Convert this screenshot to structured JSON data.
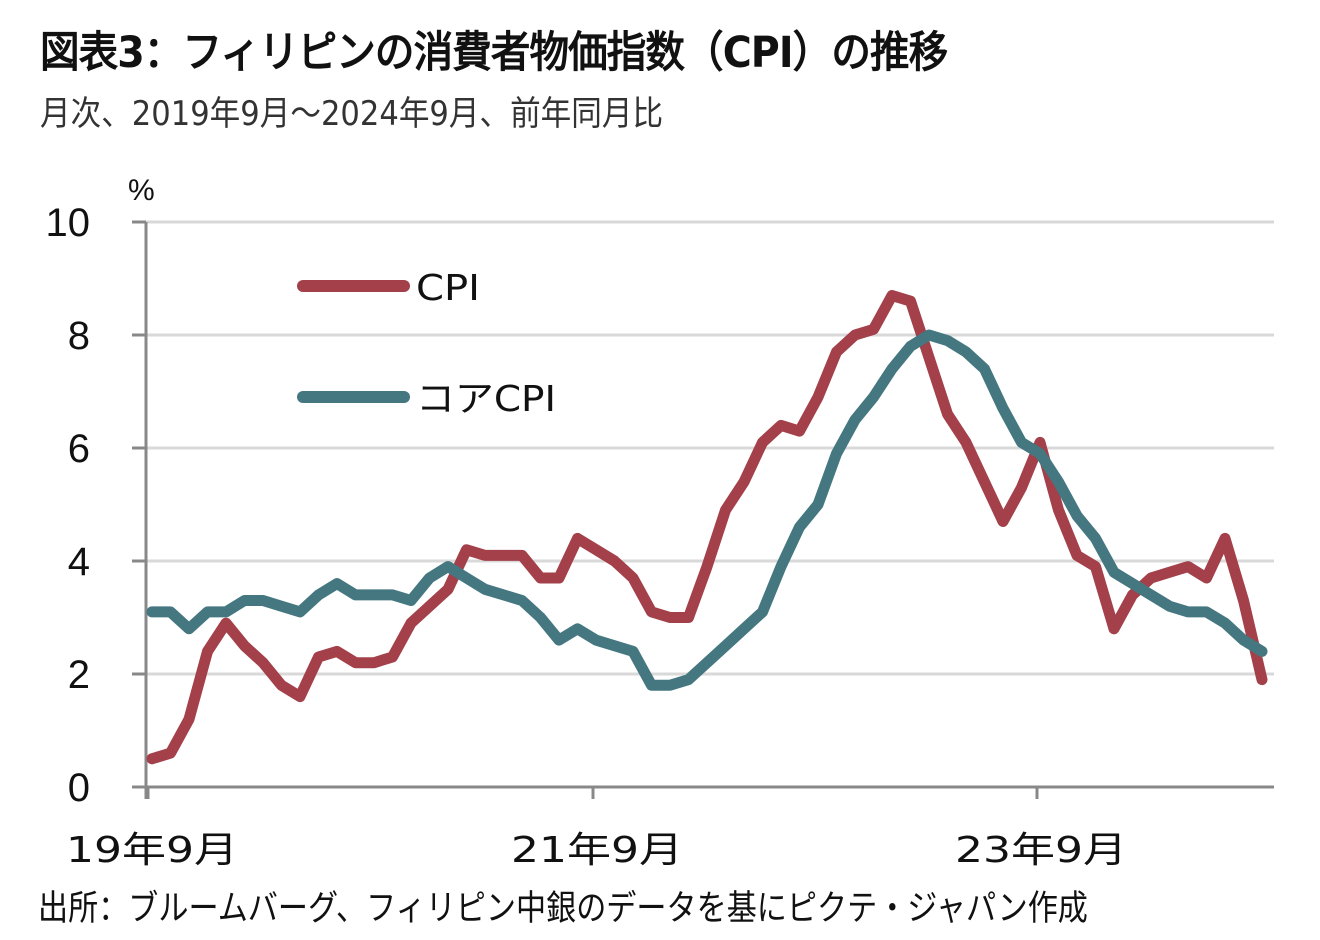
{
  "title": "図表3：フィリピンの消費者物価指数（CPI）の推移",
  "subtitle": "月次、2019年9月～2024年9月、前年同月比",
  "footer": "出所：ブルームバーグ、フィリピン中銀のデータを基にピクテ・ジャパン作成",
  "chart_data": {
    "type": "line",
    "title": "図表3：フィリピンの消費者物価指数（CPI）の推移",
    "subtitle": "月次、2019年9月～2024年9月、前年同月比",
    "xlabel": "",
    "ylabel": "%",
    "ylim": [
      0,
      10
    ],
    "yticks": [
      "0",
      "2",
      "4",
      "6",
      "8",
      "10"
    ],
    "ytick_values": [
      0,
      2,
      4,
      6,
      8,
      10
    ],
    "xtick_labels": [
      {
        "index": 0,
        "label": "19年9月"
      },
      {
        "index": 24,
        "label": "21年9月"
      },
      {
        "index": 48,
        "label": "23年9月"
      }
    ],
    "grid": "horizontal",
    "legend_position": "top-left",
    "x": [
      "2019-09",
      "2019-10",
      "2019-11",
      "2019-12",
      "2020-01",
      "2020-02",
      "2020-03",
      "2020-04",
      "2020-05",
      "2020-06",
      "2020-07",
      "2020-08",
      "2020-09",
      "2020-10",
      "2020-11",
      "2020-12",
      "2021-01",
      "2021-02",
      "2021-03",
      "2021-04",
      "2021-05",
      "2021-06",
      "2021-07",
      "2021-08",
      "2021-09",
      "2021-10",
      "2021-11",
      "2021-12",
      "2022-01",
      "2022-02",
      "2022-03",
      "2022-04",
      "2022-05",
      "2022-06",
      "2022-07",
      "2022-08",
      "2022-09",
      "2022-10",
      "2022-11",
      "2022-12",
      "2023-01",
      "2023-02",
      "2023-03",
      "2023-04",
      "2023-05",
      "2023-06",
      "2023-07",
      "2023-08",
      "2023-09",
      "2023-10",
      "2023-11",
      "2023-12",
      "2024-01",
      "2024-02",
      "2024-03",
      "2024-04",
      "2024-05",
      "2024-06",
      "2024-07",
      "2024-08",
      "2024-09"
    ],
    "series": [
      {
        "name": "CPI",
        "color": "#A3404A",
        "values": [
          0.5,
          0.6,
          1.2,
          2.4,
          2.9,
          2.5,
          2.2,
          1.8,
          1.6,
          2.3,
          2.4,
          2.2,
          2.2,
          2.3,
          2.9,
          3.2,
          3.5,
          4.2,
          4.1,
          4.1,
          4.1,
          3.7,
          3.7,
          4.4,
          4.2,
          4.0,
          3.7,
          3.1,
          3.0,
          3.0,
          3.9,
          4.9,
          5.4,
          6.1,
          6.4,
          6.3,
          6.9,
          7.7,
          8.0,
          8.1,
          8.7,
          8.6,
          7.6,
          6.6,
          6.1,
          5.4,
          4.7,
          5.3,
          6.1,
          4.9,
          4.1,
          3.9,
          2.8,
          3.4,
          3.7,
          3.8,
          3.9,
          3.7,
          4.4,
          3.3,
          1.9
        ]
      },
      {
        "name": "コアCPI",
        "color": "#457780",
        "values": [
          3.1,
          3.1,
          2.8,
          3.1,
          3.1,
          3.3,
          3.3,
          3.2,
          3.1,
          3.4,
          3.6,
          3.4,
          3.4,
          3.4,
          3.3,
          3.7,
          3.9,
          3.7,
          3.5,
          3.4,
          3.3,
          3.0,
          2.6,
          2.8,
          2.6,
          2.5,
          2.4,
          1.8,
          1.8,
          1.9,
          2.2,
          2.5,
          2.8,
          3.1,
          3.9,
          4.6,
          5.0,
          5.9,
          6.5,
          6.9,
          7.4,
          7.8,
          8.0,
          7.9,
          7.7,
          7.4,
          6.7,
          6.1,
          5.9,
          5.4,
          4.8,
          4.4,
          3.8,
          3.6,
          3.4,
          3.2,
          3.1,
          3.1,
          2.9,
          2.6,
          2.4
        ]
      }
    ]
  }
}
